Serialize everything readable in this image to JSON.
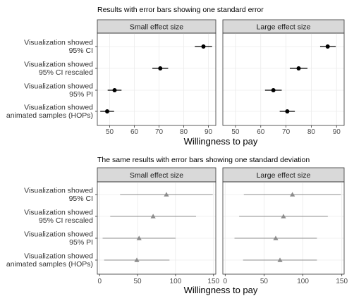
{
  "chart_data": [
    {
      "type": "scatter",
      "title": "Results with error bars showing one standard error",
      "xlabel": "Willingness to pay",
      "ylabel": "",
      "xlim": [
        45,
        93
      ],
      "xticks": [
        50,
        60,
        70,
        80,
        90
      ],
      "categories": [
        [
          "Visualization showed",
          "95% CI"
        ],
        [
          "Visualization showed",
          "95% CI rescaled"
        ],
        [
          "Visualization showed",
          "95% PI"
        ],
        [
          "Visualization showed",
          "animated samples (HOPs)"
        ]
      ],
      "marker": "circle",
      "marker_color": "#000000",
      "grid": true,
      "panels": [
        {
          "name": "Small effect size",
          "points": [
            {
              "value": 88,
              "low": 84.5,
              "high": 91.5
            },
            {
              "value": 70.5,
              "low": 67.3,
              "high": 73.7
            },
            {
              "value": 52,
              "low": 49.2,
              "high": 54.8
            },
            {
              "value": 49,
              "low": 46.2,
              "high": 51.8
            }
          ]
        },
        {
          "name": "Large effect size",
          "points": [
            {
              "value": 86.5,
              "low": 83.5,
              "high": 89.7
            },
            {
              "value": 75,
              "low": 71.5,
              "high": 78.5
            },
            {
              "value": 65,
              "low": 61.7,
              "high": 68.3
            },
            {
              "value": 70.5,
              "low": 67.5,
              "high": 73.5
            }
          ]
        }
      ]
    },
    {
      "type": "scatter",
      "title": "The same results with error bars showing one standard deviation",
      "xlabel": "Willingness to pay",
      "ylabel": "",
      "xlim": [
        -3,
        153
      ],
      "xticks": [
        0,
        50,
        100,
        150
      ],
      "categories": [
        [
          "Visualization showed",
          "95% CI"
        ],
        [
          "Visualization showed",
          "95% CI rescaled"
        ],
        [
          "Visualization showed",
          "95% PI"
        ],
        [
          "Visualization showed",
          "animated samples (HOPs)"
        ]
      ],
      "marker": "triangle",
      "marker_color": "#8c8c8c",
      "grid": true,
      "panels": [
        {
          "name": "Small effect size",
          "points": [
            {
              "value": 88,
              "low": 27,
              "high": 149
            },
            {
              "value": 70.5,
              "low": 14,
              "high": 127
            },
            {
              "value": 52,
              "low": 4,
              "high": 100
            },
            {
              "value": 49,
              "low": 6,
              "high": 92
            }
          ]
        },
        {
          "name": "Large effect size",
          "points": [
            {
              "value": 86.5,
              "low": 24,
              "high": 149
            },
            {
              "value": 75,
              "low": 18,
              "high": 132
            },
            {
              "value": 65,
              "low": 12,
              "high": 118
            },
            {
              "value": 70.5,
              "low": 23,
              "high": 118
            }
          ]
        }
      ]
    }
  ]
}
